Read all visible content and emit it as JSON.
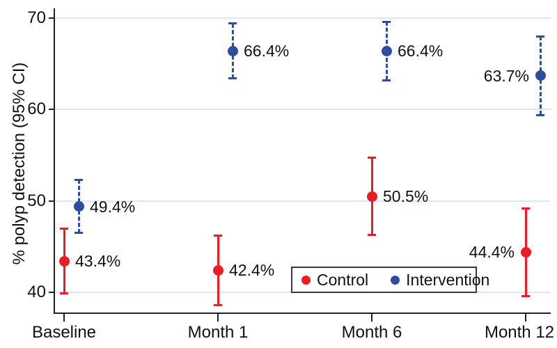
{
  "chart_data": {
    "type": "scatter",
    "title": "",
    "xlabel": "",
    "ylabel": "% polyp detection (95% CI)",
    "categories": [
      "Baseline",
      "Month 1",
      "Month 6",
      "Month 12"
    ],
    "y_ticks": [
      40,
      50,
      60,
      70
    ],
    "ylim": [
      37.5,
      71
    ],
    "grid": true,
    "grid_color": "#d9e8f1",
    "legend_position": "inside-bottom-center",
    "series": [
      {
        "name": "Control",
        "color": "#ec1c24",
        "line_style": "solid",
        "values": [
          43.4,
          42.4,
          50.5,
          44.4
        ],
        "ci_low": [
          39.9,
          38.6,
          46.3,
          39.6
        ],
        "ci_high": [
          47.0,
          46.2,
          54.7,
          49.2
        ],
        "point_labels": [
          "43.4%",
          "42.4%",
          "50.5%",
          "44.4%"
        ],
        "label_side": [
          "right",
          "right",
          "right",
          "left"
        ]
      },
      {
        "name": "Intervention",
        "color": "#2e4d9f",
        "line_style": "dashed",
        "values": [
          49.4,
          66.4,
          66.4,
          63.7
        ],
        "ci_low": [
          46.5,
          63.4,
          63.2,
          59.4
        ],
        "ci_high": [
          52.3,
          69.4,
          69.6,
          68.0
        ],
        "point_labels": [
          "49.4%",
          "66.4%",
          "66.4%",
          "63.7%"
        ],
        "label_side": [
          "right",
          "right",
          "right",
          "left"
        ]
      }
    ]
  }
}
